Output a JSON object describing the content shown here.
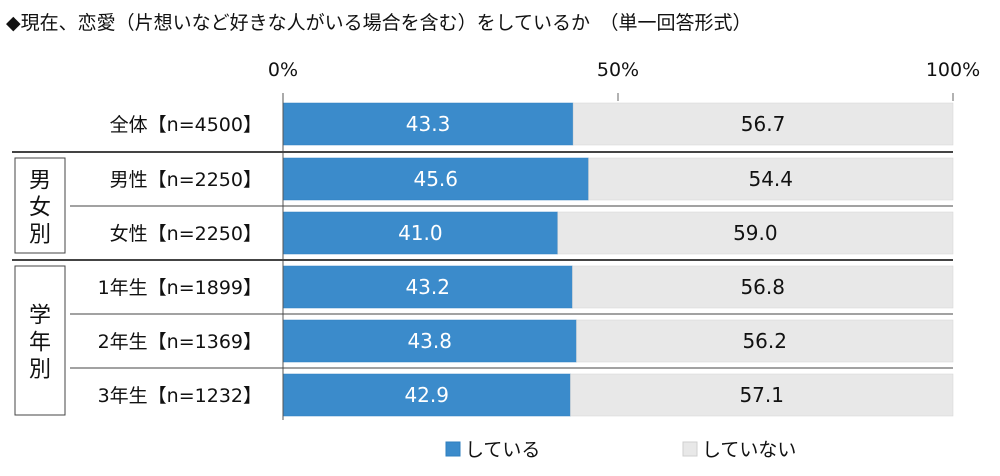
{
  "title": "◆現在、恋愛（片想いなど好きな人がいる場合を含む）をしているか　（単一回答形式）",
  "chart_data": {
    "type": "bar",
    "stacked": true,
    "orientation": "horizontal",
    "xlim": [
      0,
      100
    ],
    "x_ticks": [
      "0%",
      "50%",
      "100%"
    ],
    "categories": [
      "全体【n=4500】",
      "男性【n=2250】",
      "女性【n=2250】",
      "1年生【n=1899】",
      "2年生【n=1369】",
      "3年生【n=1232】"
    ],
    "groups": [
      {
        "label": "男女別",
        "rows": [
          1,
          2
        ]
      },
      {
        "label": "学年別",
        "rows": [
          3,
          4,
          5
        ]
      }
    ],
    "series": [
      {
        "name": "している",
        "color": "#3b8bcb",
        "values": [
          43.3,
          45.6,
          41.0,
          43.2,
          43.8,
          42.9
        ],
        "labels": [
          "43.3",
          "45.6",
          "41.0",
          "43.2",
          "43.8",
          "42.9"
        ]
      },
      {
        "name": "していない",
        "color": "#e8e8e8",
        "values": [
          56.7,
          54.4,
          59.0,
          56.8,
          56.2,
          57.1
        ],
        "labels": [
          "56.7",
          "54.4",
          "59.0",
          "56.8",
          "56.2",
          "57.1"
        ]
      }
    ],
    "legend_position": "bottom",
    "grid": false
  }
}
